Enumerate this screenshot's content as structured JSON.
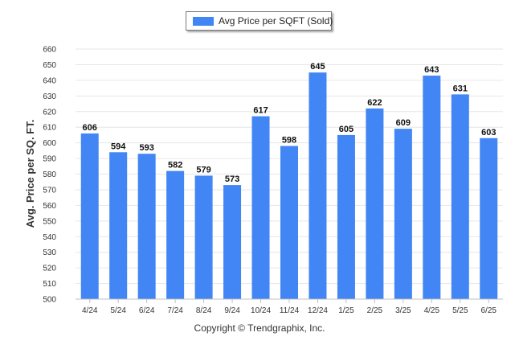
{
  "chart_data": {
    "type": "bar",
    "categories": [
      "4/24",
      "5/24",
      "6/24",
      "7/24",
      "8/24",
      "9/24",
      "10/24",
      "11/24",
      "12/24",
      "1/25",
      "2/25",
      "3/25",
      "4/25",
      "5/25",
      "6/25"
    ],
    "series": [
      {
        "name": "Avg Price per SQFT (Sold)",
        "values": [
          606,
          594,
          593,
          582,
          579,
          573,
          617,
          598,
          645,
          605,
          622,
          609,
          643,
          631,
          603
        ]
      }
    ],
    "title": "",
    "xlabel": "",
    "ylabel": "Avg. Price per SQ. FT.",
    "ylim": [
      500,
      660
    ],
    "ytick_step": 10,
    "grid": true,
    "legend_position": "top-center",
    "bar_color": "#4285f4",
    "data_labels": true
  },
  "footer": {
    "copyright": "Copyright © Trendgraphix, Inc."
  }
}
